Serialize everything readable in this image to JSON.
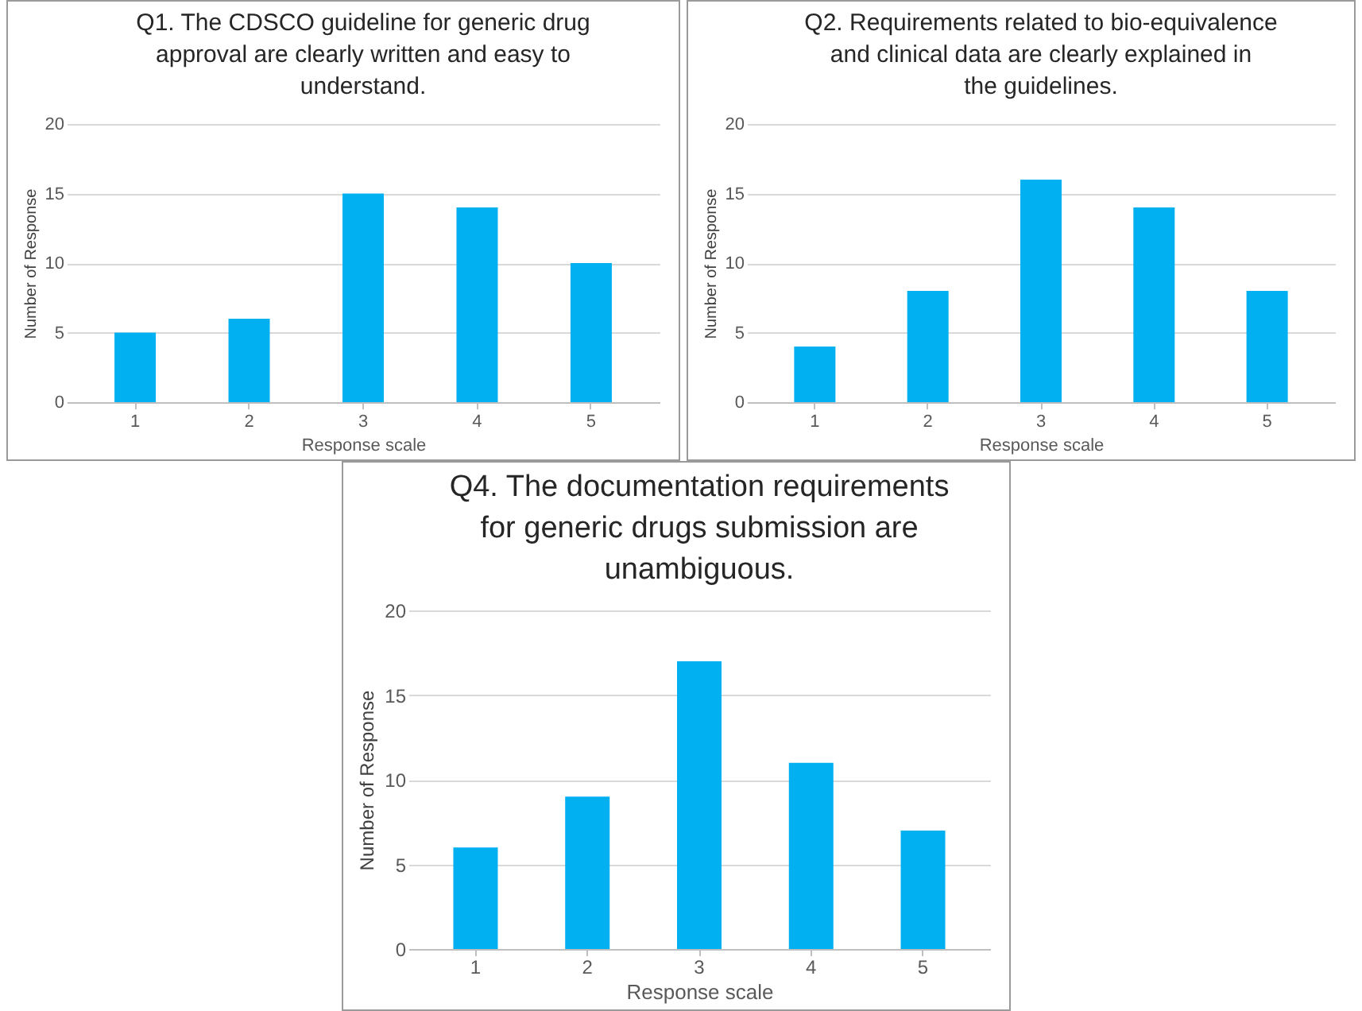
{
  "chart_data": [
    {
      "type": "bar",
      "title": "Q1. The CDSCO guideline for generic drug approval are clearly written and easy to understand.",
      "xlabel": "Response scale",
      "ylabel": "Number of Response",
      "categories": [
        "1",
        "2",
        "3",
        "4",
        "5"
      ],
      "values": [
        5,
        6,
        15,
        14,
        10
      ],
      "color": "#00b0f0",
      "ylim": [
        0,
        20
      ],
      "yticks": [
        0,
        5,
        10,
        15,
        20
      ],
      "grid": "y"
    },
    {
      "type": "bar",
      "title": "Q2. Requirements related to bio-equivalence and clinical data are clearly explained in the guidelines.",
      "xlabel": "Response scale",
      "ylabel": "Number of Response",
      "categories": [
        "1",
        "2",
        "3",
        "4",
        "5"
      ],
      "values": [
        4,
        8,
        16,
        14,
        8
      ],
      "color": "#00b0f0",
      "ylim": [
        0,
        20
      ],
      "yticks": [
        0,
        5,
        10,
        15,
        20
      ],
      "grid": "y"
    },
    {
      "type": "bar",
      "title": "Q4. The documentation requirements for generic drugs submission are unambiguous.",
      "xlabel": "Response scale",
      "ylabel": "Number of Response",
      "categories": [
        "1",
        "2",
        "3",
        "4",
        "5"
      ],
      "values": [
        6,
        9,
        17,
        11,
        7
      ],
      "color": "#00b0f0",
      "ylim": [
        0,
        20
      ],
      "yticks": [
        0,
        5,
        10,
        15,
        20
      ],
      "grid": "y"
    }
  ]
}
